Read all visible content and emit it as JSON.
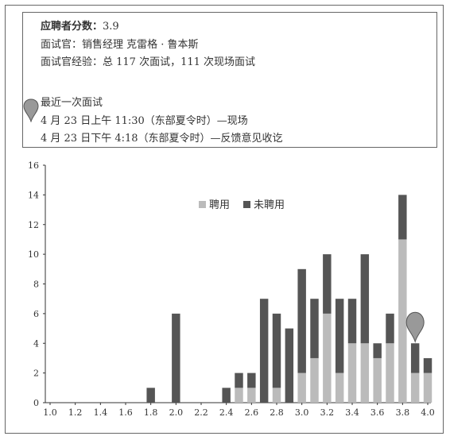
{
  "header": {
    "score_label": "应聘者分数：",
    "score_value": "3.9",
    "interviewer": "面试官：销售经理 克雷格 · 鲁本斯",
    "experience": "面试官经验：总 117 次面试，111 次现场面试",
    "recent_title": "最近一次面试",
    "recent_1": "4 月 23 日上午 11:30（东部夏令时）—现场",
    "recent_2": "4 月 23 日下午 4:18（东部夏令时）—反馈意见收讫"
  },
  "colors": {
    "hired": "#bbbbbb",
    "not_hired": "#555555",
    "pin": "#999999"
  },
  "chart_data": {
    "type": "bar",
    "stacked": true,
    "x": [
      1.8,
      2.0,
      2.4,
      2.5,
      2.6,
      2.7,
      2.8,
      2.9,
      3.0,
      3.1,
      3.2,
      3.3,
      3.4,
      3.5,
      3.6,
      3.7,
      3.8,
      3.9,
      4.0
    ],
    "series": [
      {
        "name": "聘用",
        "values": [
          0,
          0,
          0,
          1,
          1,
          0,
          1,
          0,
          2,
          3,
          6,
          2,
          4,
          4,
          3,
          4,
          11,
          2,
          2
        ]
      },
      {
        "name": "未聘用",
        "values": [
          1,
          6,
          1,
          1,
          1,
          7,
          5,
          5,
          7,
          4,
          4,
          5,
          3,
          6,
          1,
          2,
          3,
          2,
          1
        ]
      }
    ],
    "xlim": [
      1.0,
      4.0
    ],
    "ylim": [
      0,
      16
    ],
    "xticks": [
      "1.0",
      "1.2",
      "1.4",
      "1.6",
      "1.8",
      "2.0",
      "2.2",
      "2.4",
      "2.6",
      "2.8",
      "3.0",
      "3.2",
      "3.4",
      "3.6",
      "3.8",
      "4.0"
    ],
    "yticks": [
      "0",
      "2",
      "4",
      "6",
      "8",
      "10",
      "12",
      "14",
      "16"
    ],
    "marker_x": 3.9,
    "legend_position": "top-right"
  }
}
